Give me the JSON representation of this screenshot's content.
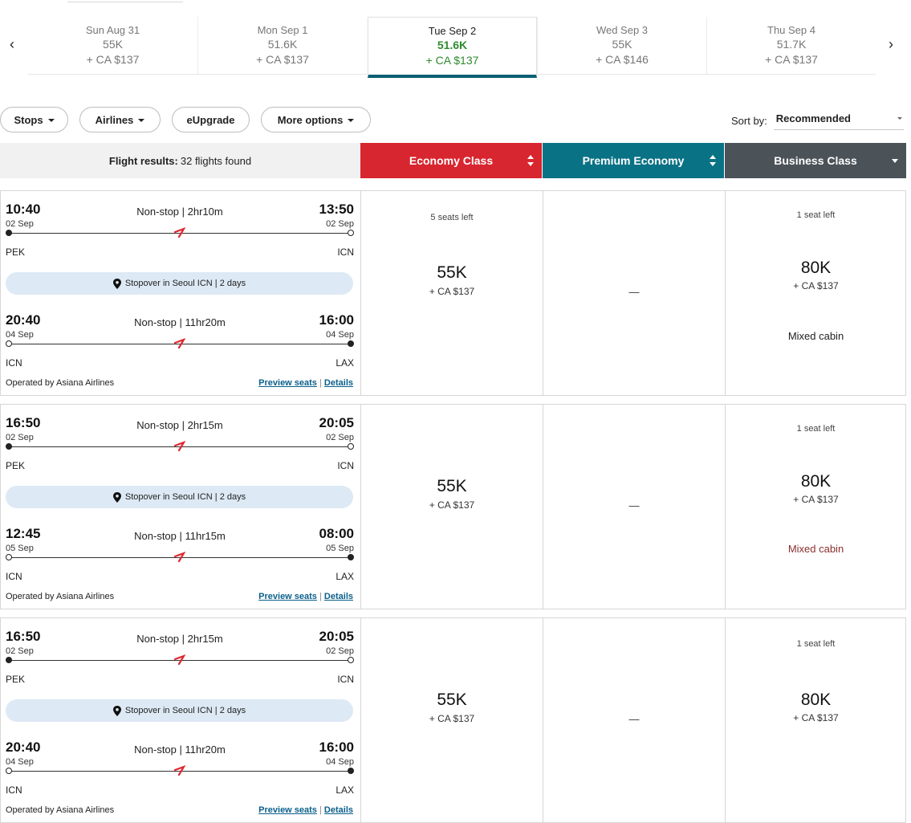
{
  "date_strip": {
    "prev_icon": "chevron-left-icon",
    "next_icon": "chevron-right-icon",
    "dates": [
      {
        "label": "Sun Aug 31",
        "miles": "55K",
        "tax": "+ CA $137",
        "selected": false
      },
      {
        "label": "Mon Sep 1",
        "miles": "51.6K",
        "tax": "+ CA $137",
        "selected": false
      },
      {
        "label": "Tue Sep 2",
        "miles": "51.6K",
        "tax": "+ CA $137",
        "selected": true
      },
      {
        "label": "Wed Sep 3",
        "miles": "55K",
        "tax": "+ CA $146",
        "selected": false
      },
      {
        "label": "Thu Sep 4",
        "miles": "51.7K",
        "tax": "+ CA $137",
        "selected": false
      }
    ]
  },
  "filters": {
    "stops": "Stops",
    "airlines": "Airlines",
    "eupgrade": "eUpgrade",
    "more_options": "More options",
    "sort_label": "Sort by:",
    "sort_value": "Recommended"
  },
  "results_header": {
    "label": "Flight results:",
    "count": "32 flights found",
    "economy": "Economy Class",
    "premium": "Premium Economy",
    "business": "Business Class"
  },
  "colors": {
    "economy": "#d7262f",
    "premium": "#0a7285",
    "business": "#4b5258",
    "selected_price": "#2e8b2e",
    "plane": "#e0262f"
  },
  "flights": [
    {
      "segments": [
        {
          "dep_time": "10:40",
          "dep_date": "02 Sep",
          "arr_time": "13:50",
          "arr_date": "02 Sep",
          "duration": "Non-stop | 2hr10m",
          "dep_code": "PEK",
          "arr_code": "ICN"
        },
        {
          "dep_time": "20:40",
          "dep_date": "04 Sep",
          "arr_time": "16:00",
          "arr_date": "04 Sep",
          "duration": "Non-stop | 11hr20m",
          "dep_code": "ICN",
          "arr_code": "LAX"
        }
      ],
      "stopover": "Stopover in Seoul ICN | 2 days",
      "operated": "Operated by Asiana Airlines",
      "preview": "Preview seats",
      "details": "Details",
      "economy": {
        "seats": "5 seats left",
        "miles": "55K",
        "tax": "+ CA $137"
      },
      "premium": {
        "dash": "—"
      },
      "business": {
        "seats": "1 seat left",
        "miles": "80K",
        "tax": "+ CA $137",
        "note": "Mixed cabin"
      }
    },
    {
      "segments": [
        {
          "dep_time": "16:50",
          "dep_date": "02 Sep",
          "arr_time": "20:05",
          "arr_date": "02 Sep",
          "duration": "Non-stop | 2hr15m",
          "dep_code": "PEK",
          "arr_code": "ICN"
        },
        {
          "dep_time": "12:45",
          "dep_date": "05 Sep",
          "arr_time": "08:00",
          "arr_date": "05 Sep",
          "duration": "Non-stop | 11hr15m",
          "dep_code": "ICN",
          "arr_code": "LAX"
        }
      ],
      "stopover": "Stopover in Seoul ICN | 2 days",
      "operated": "Operated by Asiana Airlines",
      "preview": "Preview seats",
      "details": "Details",
      "economy": {
        "seats": "",
        "miles": "55K",
        "tax": "+ CA $137"
      },
      "premium": {
        "dash": "—"
      },
      "business": {
        "seats": "1 seat left",
        "miles": "80K",
        "tax": "+ CA $137",
        "note": "Mixed cabin"
      }
    },
    {
      "segments": [
        {
          "dep_time": "16:50",
          "dep_date": "02 Sep",
          "arr_time": "20:05",
          "arr_date": "02 Sep",
          "duration": "Non-stop | 2hr15m",
          "dep_code": "PEK",
          "arr_code": "ICN"
        },
        {
          "dep_time": "20:40",
          "dep_date": "04 Sep",
          "arr_time": "16:00",
          "arr_date": "04 Sep",
          "duration": "Non-stop | 11hr20m",
          "dep_code": "ICN",
          "arr_code": "LAX"
        }
      ],
      "stopover": "Stopover in Seoul ICN | 2 days",
      "operated": "Operated by Asiana Airlines",
      "preview": "Preview seats",
      "details": "Details",
      "economy": {
        "seats": "",
        "miles": "55K",
        "tax": "+ CA $137"
      },
      "premium": {
        "dash": "—"
      },
      "business": {
        "seats": "1 seat left",
        "miles": "80K",
        "tax": "+ CA $137",
        "note": ""
      }
    }
  ]
}
